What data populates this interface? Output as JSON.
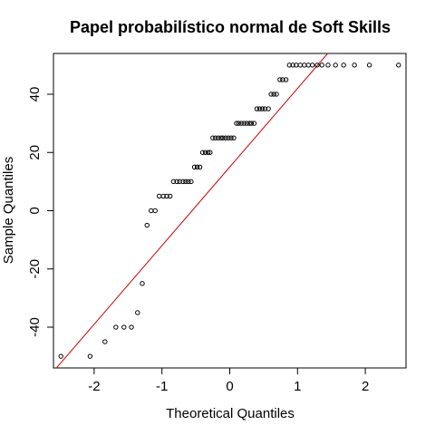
{
  "chart_data": {
    "type": "scatter",
    "title": "Papel probabilístico normal de Soft Skills",
    "xlabel": "Theoretical Quantiles",
    "ylabel": "Sample Quantiles",
    "xlim": [
      -2.6,
      2.6
    ],
    "ylim": [
      -54,
      54
    ],
    "xticks": [
      -2,
      -1,
      0,
      1,
      2
    ],
    "xtick_labels": [
      "-2",
      "-1",
      "0",
      "1",
      "2"
    ],
    "yticks": [
      -40,
      -20,
      0,
      20,
      40
    ],
    "ytick_labels": [
      "-40",
      "-20",
      "0",
      "20",
      "40"
    ],
    "grid": false,
    "colors": {
      "points": "#000000",
      "reference_line": "#cc0000"
    },
    "reference_line": {
      "intercept": 15,
      "slope": 27
    },
    "series": [
      {
        "x": [
          -2.49,
          -2.06,
          -1.84,
          -1.68,
          -1.56,
          -1.45,
          -1.36,
          -1.29,
          -1.22,
          -1.16,
          -1.1,
          -1.04,
          -0.98,
          -0.93,
          -0.88,
          -0.83,
          -0.78,
          -0.74,
          -0.69,
          -0.65,
          -0.61,
          -0.57,
          -0.52,
          -0.48,
          -0.44,
          -0.4,
          -0.36,
          -0.32,
          -0.29,
          -0.25,
          -0.21,
          -0.17,
          -0.13,
          -0.1,
          -0.06,
          -0.02,
          0.02,
          0.06,
          0.1,
          0.13,
          0.17,
          0.21,
          0.25,
          0.29,
          0.32,
          0.36,
          0.4,
          0.44,
          0.48,
          0.52,
          0.57,
          0.61,
          0.65,
          0.69,
          0.74,
          0.78,
          0.83,
          0.88,
          0.93,
          0.98,
          1.04,
          1.1,
          1.16,
          1.22,
          1.29,
          1.36,
          1.45,
          1.56,
          1.68,
          1.84,
          2.06,
          2.49
        ],
        "y": [
          -50,
          -50,
          -45,
          -40,
          -40,
          -40,
          -35,
          -25,
          -5,
          0,
          0,
          5,
          5,
          5,
          5,
          10,
          10,
          10,
          10,
          10,
          10,
          10,
          15,
          15,
          15,
          20,
          20,
          20,
          20,
          25,
          25,
          25,
          25,
          25,
          25,
          25,
          25,
          25,
          30,
          30,
          30,
          30,
          30,
          30,
          30,
          30,
          35,
          35,
          35,
          35,
          35,
          40,
          40,
          40,
          45,
          45,
          45,
          50,
          50,
          50,
          50,
          50,
          50,
          50,
          50,
          50,
          50,
          50,
          50,
          50,
          50,
          50
        ]
      }
    ]
  }
}
